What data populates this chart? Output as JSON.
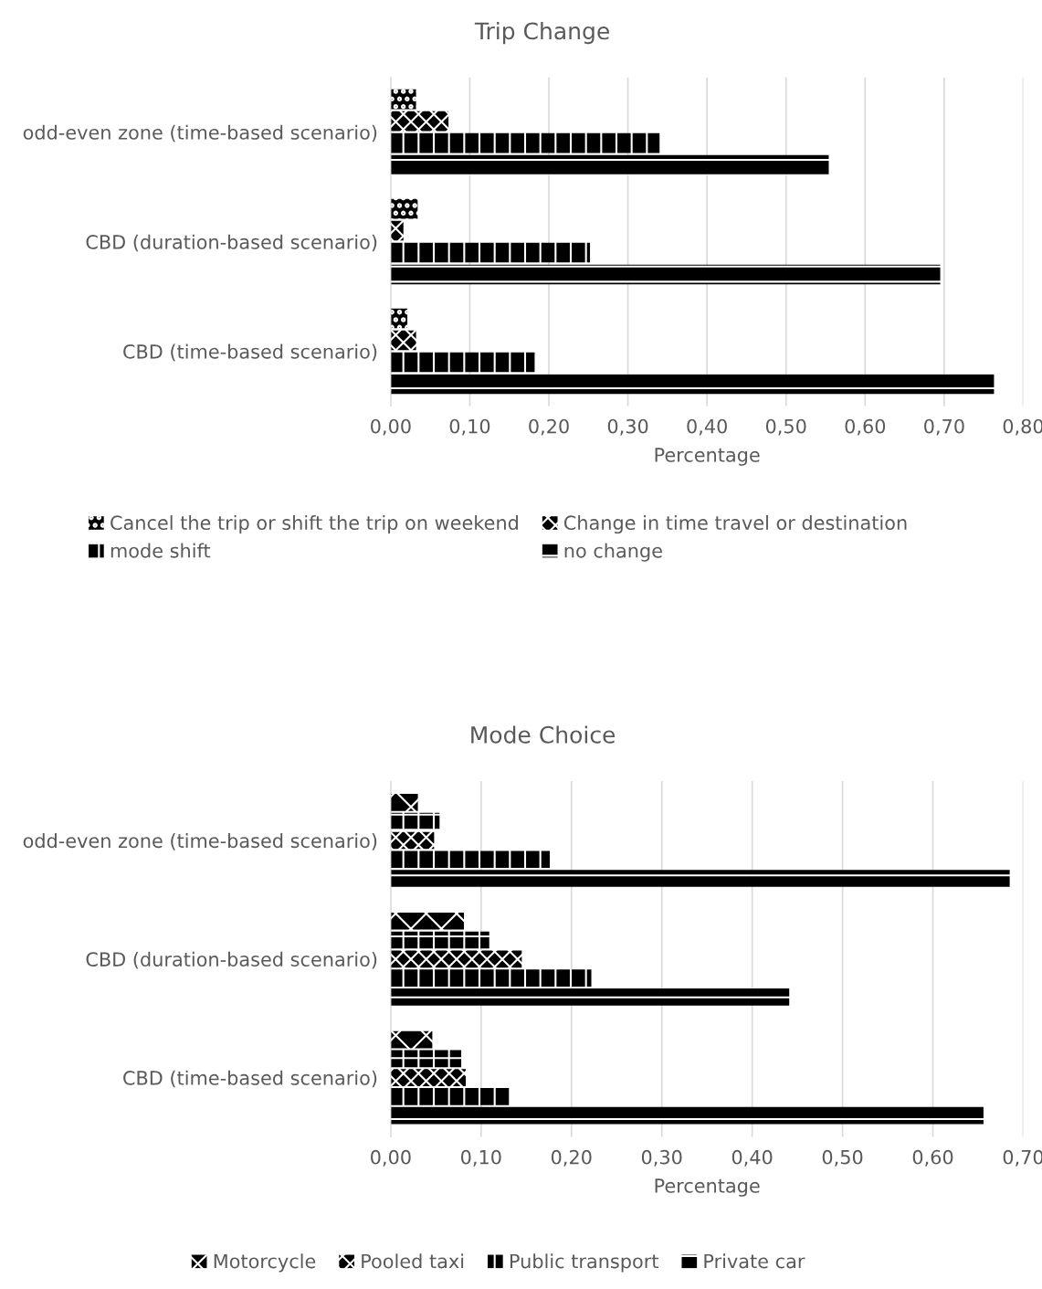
{
  "chart_data": [
    {
      "type": "bar",
      "orientation": "horizontal",
      "title": "Trip Change",
      "xlabel": "Percentage",
      "categories": [
        "odd-even zone (time-based scenario)",
        "CBD (duration-based scenario)",
        "CBD (time-based scenario)"
      ],
      "series": [
        {
          "name": "Cancel the trip or shift the trip on weekend",
          "color": "#000000",
          "values": [
            0.032,
            0.034,
            0.021
          ]
        },
        {
          "name": "Change in time travel or destination",
          "color": "#000000",
          "values": [
            0.073,
            0.016,
            0.032
          ]
        },
        {
          "name": "mode shift",
          "color": "#000000",
          "values": [
            0.34,
            0.252,
            0.182
          ]
        },
        {
          "name": "no change",
          "color": "#000000",
          "values": [
            0.554,
            0.695,
            0.763
          ]
        }
      ],
      "xlim": [
        0,
        0.8
      ],
      "xticks": [
        {
          "value": 0,
          "label": "0,00"
        },
        {
          "value": 0.1,
          "label": "0,10"
        },
        {
          "value": 0.2,
          "label": "0,20"
        },
        {
          "value": 0.3,
          "label": "0,30"
        },
        {
          "value": 0.4,
          "label": "0,40"
        },
        {
          "value": 0.5,
          "label": "0,50"
        },
        {
          "value": 0.6,
          "label": "0,60"
        },
        {
          "value": 0.7,
          "label": "0,70"
        },
        {
          "value": 0.8,
          "label": "0,80"
        }
      ],
      "grid": "x",
      "legend": "bottom"
    },
    {
      "type": "bar",
      "orientation": "horizontal",
      "title": "Mode Choice",
      "xlabel": "Percentage",
      "categories": [
        "odd-even zone (time-based scenario)",
        "CBD (duration-based scenario)",
        "CBD (time-based scenario)"
      ],
      "series": [
        {
          "name": "Motorcycle",
          "color": "#000000",
          "values": [
            0.03,
            0.081,
            0.046
          ]
        },
        {
          "color": "#000000",
          "values": [
            0.054,
            0.109,
            0.078
          ]
        },
        {
          "name": "Pooled taxi",
          "color": "#000000",
          "values": [
            0.048,
            0.145,
            0.083
          ]
        },
        {
          "name": "Public transport",
          "color": "#000000",
          "values": [
            0.176,
            0.222,
            0.132
          ]
        },
        {
          "name": "Private car",
          "color": "#000000",
          "values": [
            0.685,
            0.441,
            0.656
          ]
        }
      ],
      "xlim": [
        0,
        0.7
      ],
      "xticks": [
        {
          "value": 0,
          "label": "0,00"
        },
        {
          "value": 0.1,
          "label": "0,10"
        },
        {
          "value": 0.2,
          "label": "0,20"
        },
        {
          "value": 0.3,
          "label": "0,30"
        },
        {
          "value": 0.4,
          "label": "0,40"
        },
        {
          "value": 0.5,
          "label": "0,50"
        },
        {
          "value": 0.6,
          "label": "0,60"
        },
        {
          "value": 0.7,
          "label": "0,70"
        }
      ],
      "grid": "x",
      "legend": "bottom"
    }
  ]
}
